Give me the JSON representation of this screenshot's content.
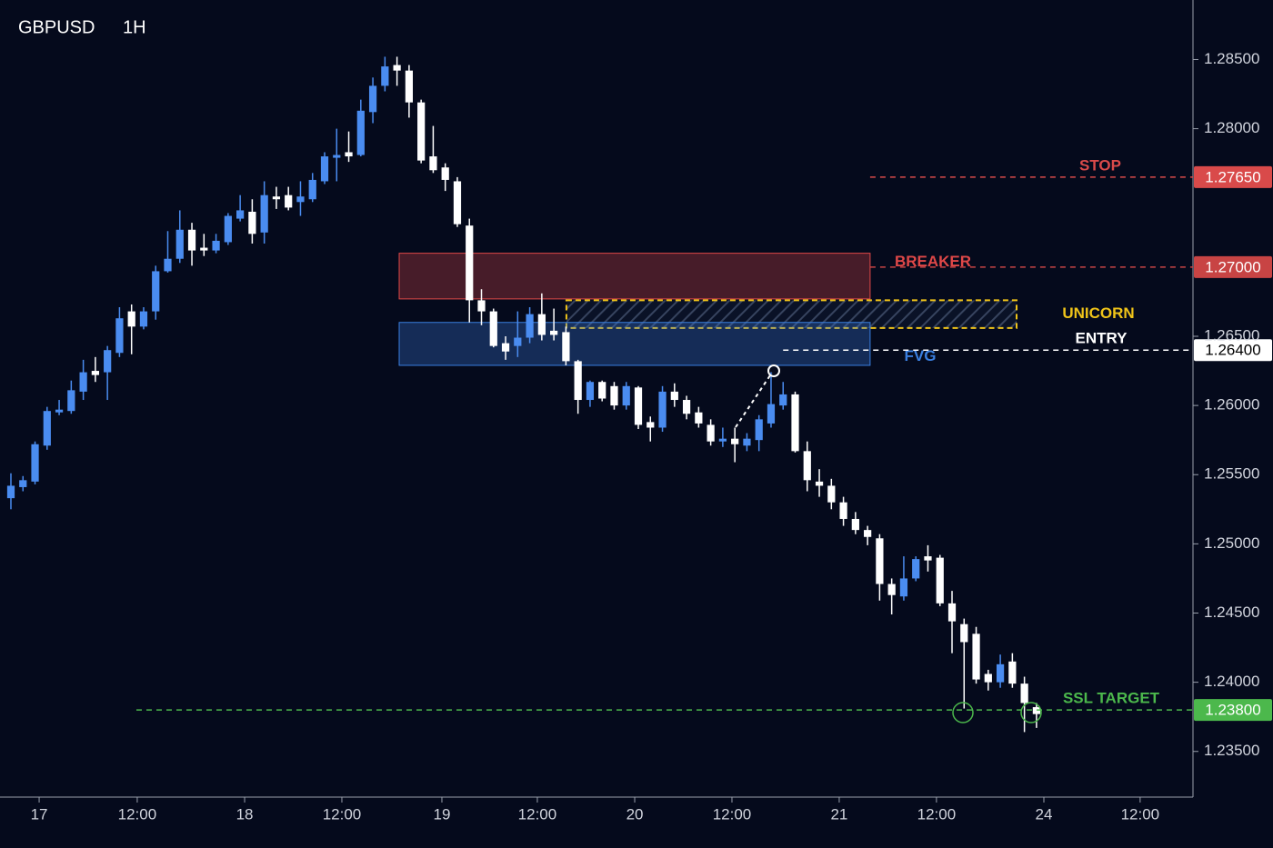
{
  "chart_data": {
    "type": "candlestick",
    "title": "GBPUSD",
    "subtitle": "1H",
    "x": [
      0,
      1,
      2,
      3,
      4,
      5,
      6,
      7,
      8,
      9,
      10,
      11,
      12,
      13,
      14,
      15,
      16,
      17,
      18,
      19,
      20,
      21,
      22,
      23,
      24,
      25,
      26,
      27,
      28,
      29,
      30,
      31,
      32,
      33,
      34,
      35,
      36,
      37,
      38,
      39,
      40,
      41,
      42,
      43,
      44,
      45,
      46,
      47,
      48,
      49,
      50,
      51,
      52,
      53,
      54,
      55,
      56,
      57,
      58,
      59,
      60,
      61,
      62,
      63,
      64,
      65,
      66,
      67,
      68,
      69,
      70,
      71,
      72,
      73,
      74,
      75,
      76,
      77,
      78,
      79,
      80,
      81,
      82,
      83,
      84,
      85
    ],
    "open": [
      1.2533,
      1.2541,
      1.2545,
      1.2571,
      1.2595,
      1.2596,
      1.261,
      1.2625,
      1.2624,
      1.2638,
      1.2668,
      1.2657,
      1.2668,
      1.2697,
      1.2706,
      1.2727,
      1.2714,
      1.2712,
      1.2718,
      1.2735,
      1.274,
      1.2725,
      1.2751,
      1.2752,
      1.2747,
      1.2749,
      1.2762,
      1.2779,
      1.2783,
      1.2781,
      1.2812,
      1.2831,
      1.2846,
      1.2842,
      1.2819,
      1.278,
      1.2772,
      1.2762,
      1.273,
      1.2676,
      1.2668,
      1.2645,
      1.2643,
      1.2649,
      1.2666,
      1.2654,
      1.2653,
      1.2632,
      1.2604,
      1.2617,
      1.2614,
      1.26,
      1.2613,
      1.2588,
      1.2584,
      1.261,
      1.2604,
      1.2595,
      1.2586,
      1.2574,
      1.2576,
      1.2571,
      1.2575,
      1.2587,
      1.26,
      1.2608,
      1.2567,
      1.2545,
      1.2542,
      1.253,
      1.2518,
      1.251,
      1.2504,
      1.2471,
      1.2462,
      1.2475,
      1.2491,
      1.249,
      1.2457,
      1.2442,
      1.2435,
      1.2406,
      1.24,
      1.2415,
      1.2399,
      1.2382
    ],
    "high": [
      1.2551,
      1.2549,
      1.2574,
      1.2599,
      1.2604,
      1.2618,
      1.2633,
      1.2635,
      1.2643,
      1.2671,
      1.2673,
      1.2671,
      1.2701,
      1.2726,
      1.2741,
      1.2732,
      1.2724,
      1.2724,
      1.2739,
      1.2752,
      1.2749,
      1.2762,
      1.2758,
      1.2758,
      1.2762,
      1.2768,
      1.2783,
      1.28,
      1.2798,
      1.2821,
      1.2837,
      1.2852,
      1.2852,
      1.2846,
      1.2821,
      1.2802,
      1.2775,
      1.2765,
      1.2735,
      1.2684,
      1.267,
      1.265,
      1.2668,
      1.2671,
      1.2681,
      1.267,
      1.2657,
      1.2633,
      1.2618,
      1.2618,
      1.2617,
      1.2617,
      1.2614,
      1.2592,
      1.2614,
      1.2616,
      1.2607,
      1.2599,
      1.259,
      1.2584,
      1.2584,
      1.258,
      1.2593,
      1.2624,
      1.2617,
      1.261,
      1.2574,
      1.2554,
      1.2547,
      1.2534,
      1.2523,
      1.2513,
      1.2507,
      1.2475,
      1.2491,
      1.2491,
      1.2499,
      1.2492,
      1.2466,
      1.2446,
      1.244,
      1.2409,
      1.242,
      1.2421,
      1.2404,
      1.2385
    ],
    "low": [
      1.2525,
      1.2538,
      1.2543,
      1.2568,
      1.2593,
      1.2594,
      1.2604,
      1.2617,
      1.2604,
      1.2635,
      1.2637,
      1.2655,
      1.2662,
      1.2696,
      1.2703,
      1.2701,
      1.2708,
      1.271,
      1.2716,
      1.2733,
      1.2717,
      1.2717,
      1.2742,
      1.2741,
      1.2737,
      1.2747,
      1.276,
      1.2762,
      1.2776,
      1.278,
      1.2804,
      1.2827,
      1.2831,
      1.2808,
      1.2775,
      1.2768,
      1.2755,
      1.2729,
      1.266,
      1.2658,
      1.2642,
      1.2633,
      1.2635,
      1.2645,
      1.2647,
      1.2647,
      1.2629,
      1.2594,
      1.2599,
      1.2603,
      1.2597,
      1.2597,
      1.2583,
      1.2574,
      1.2581,
      1.2599,
      1.259,
      1.2584,
      1.2571,
      1.257,
      1.2559,
      1.2567,
      1.2567,
      1.2584,
      1.2597,
      1.2566,
      1.2538,
      1.2534,
      1.2525,
      1.2513,
      1.2507,
      1.2499,
      1.2459,
      1.2449,
      1.2459,
      1.2473,
      1.248,
      1.2455,
      1.2421,
      1.2381,
      1.2399,
      1.2394,
      1.2396,
      1.2396,
      1.2364,
      1.2367
    ],
    "close": [
      1.2542,
      1.2546,
      1.2572,
      1.2596,
      1.2597,
      1.2611,
      1.2624,
      1.2622,
      1.264,
      1.2663,
      1.2657,
      1.2668,
      1.2697,
      1.2706,
      1.2727,
      1.2712,
      1.2712,
      1.2719,
      1.2737,
      1.2741,
      1.2724,
      1.2752,
      1.2749,
      1.2743,
      1.2751,
      1.2763,
      1.278,
      1.2781,
      1.278,
      1.2813,
      1.2831,
      1.2845,
      1.2842,
      1.2819,
      1.2777,
      1.277,
      1.2763,
      1.2731,
      1.2676,
      1.2668,
      1.2643,
      1.2639,
      1.2649,
      1.2666,
      1.2651,
      1.2651,
      1.2632,
      1.2604,
      1.2617,
      1.2605,
      1.26,
      1.2614,
      1.2586,
      1.2584,
      1.261,
      1.2604,
      1.2594,
      1.2587,
      1.2574,
      1.2576,
      1.2572,
      1.2576,
      1.259,
      1.2601,
      1.2608,
      1.2567,
      1.2546,
      1.2542,
      1.253,
      1.2518,
      1.251,
      1.2505,
      1.2471,
      1.2463,
      1.2475,
      1.2489,
      1.2488,
      1.2457,
      1.2444,
      1.2429,
      1.2402,
      1.24,
      1.2413,
      1.2399,
      1.2385,
      1.2377
    ],
    "up_color": "#4a8cf0",
    "down_color": "#ffffff",
    "xlim": [
      -0.904,
      97.97
    ],
    "xticks": [
      {
        "value": 2.34,
        "label": "17"
      },
      {
        "value": 10.47,
        "label": "12:00"
      },
      {
        "value": 19.37,
        "label": "18"
      },
      {
        "value": 27.43,
        "label": "12:00"
      },
      {
        "value": 35.72,
        "label": "19"
      },
      {
        "value": 43.63,
        "label": "12:00"
      },
      {
        "value": 51.7,
        "label": "20"
      },
      {
        "value": 59.76,
        "label": "12:00"
      },
      {
        "value": 68.65,
        "label": "21"
      },
      {
        "value": 76.71,
        "label": "12:00"
      },
      {
        "value": 85.61,
        "label": "24"
      },
      {
        "value": 93.59,
        "label": "12:00"
      }
    ],
    "ylim": [
      1.2317,
      1.2893
    ],
    "yticks": [
      {
        "value": 1.235,
        "label": "1.23500"
      },
      {
        "value": 1.24,
        "label": "1.24000"
      },
      {
        "value": 1.245,
        "label": "1.24500"
      },
      {
        "value": 1.25,
        "label": "1.25000"
      },
      {
        "value": 1.255,
        "label": "1.25500"
      },
      {
        "value": 1.26,
        "label": "1.26000"
      },
      {
        "value": 1.265,
        "label": "1.26500"
      },
      {
        "value": 1.28,
        "label": "1.28000"
      },
      {
        "value": 1.285,
        "label": "1.28500"
      }
    ],
    "zones": [
      {
        "name": "BREAKER",
        "ymin": 1.2677,
        "ymax": 1.271,
        "xmin": 32.18,
        "xmax": 71.21,
        "color": "#e04848"
      },
      {
        "name": "UNICORN",
        "ymin": 1.2656,
        "ymax": 1.2676,
        "xmin": 46.04,
        "xmax": 83.35,
        "color": "#f0c419"
      },
      {
        "name": "FVG",
        "ymin": 1.2629,
        "ymax": 1.266,
        "xmin": 32.18,
        "xmax": 71.21,
        "color": "#3a7fe0"
      }
    ],
    "levels": [
      {
        "name": "STOP",
        "value": 1.2765,
        "value_label": "1.27650",
        "x_start": 71.21,
        "color": "#d94a4a"
      },
      {
        "value": 1.27,
        "value_label": "1.27000",
        "x_start": 71.21,
        "color": "#c84444"
      },
      {
        "name": "ENTRY",
        "value": 1.264,
        "value_label": "1.26400",
        "x_start": 64.0,
        "color": "#ffffff"
      },
      {
        "name": "SSL TARGET",
        "value": 1.238,
        "value_label": "1.23800",
        "x_start": 10.4,
        "color": "#4cb84c"
      }
    ]
  }
}
